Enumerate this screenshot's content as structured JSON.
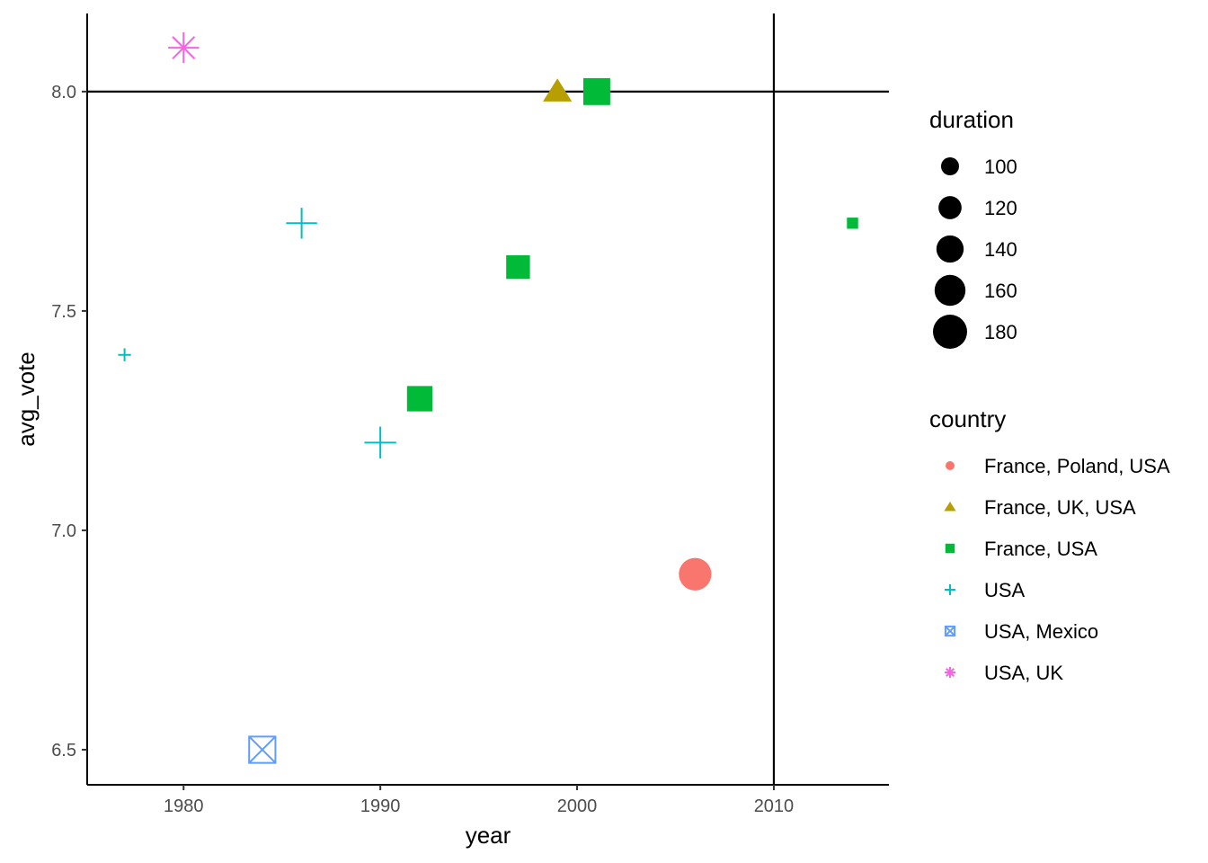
{
  "chart_data": {
    "type": "scatter",
    "xlabel": "year",
    "ylabel": "avg_vote",
    "xlim": [
      1975.1,
      2015.85
    ],
    "ylim": [
      6.42,
      8.178
    ],
    "x_ticks": [
      1980,
      1990,
      2000,
      2010
    ],
    "x_tick_labels": [
      "1980",
      "1990",
      "2000",
      "2010"
    ],
    "y_ticks": [
      6.5,
      7.0,
      7.5,
      8.0
    ],
    "y_tick_labels": [
      "6.5",
      "7.0",
      "7.5",
      "8.0"
    ],
    "grid": false,
    "reference_lines": {
      "hline": 8.0,
      "vline": 2010
    },
    "size_legend": {
      "title": "duration",
      "values": [
        100,
        120,
        140,
        160,
        180
      ],
      "labels": [
        "100",
        "120",
        "140",
        "160",
        "180"
      ]
    },
    "color_legend": {
      "title": "country",
      "entries": [
        {
          "label": "France, Poland, USA",
          "color": "#F8766D",
          "shape": "circle"
        },
        {
          "label": "France, UK, USA",
          "color": "#B79F00",
          "shape": "triangle"
        },
        {
          "label": "France, USA",
          "color": "#00BA38",
          "shape": "square"
        },
        {
          "label": "USA",
          "color": "#00BFC4",
          "shape": "plus"
        },
        {
          "label": "USA, Mexico",
          "color": "#619CFF",
          "shape": "boxx"
        },
        {
          "label": "USA, UK",
          "color": "#F564E3",
          "shape": "asterisk"
        }
      ]
    },
    "legend_position": "right",
    "points": [
      {
        "year": 1980,
        "avg_vote": 8.1,
        "duration": 160,
        "country": "USA, UK"
      },
      {
        "year": 1999,
        "avg_vote": 8.0,
        "duration": 135,
        "country": "France, UK, USA"
      },
      {
        "year": 2001,
        "avg_vote": 8.0,
        "duration": 160,
        "country": "France, USA"
      },
      {
        "year": 2014,
        "avg_vote": 7.7,
        "duration": 85,
        "country": "France, USA"
      },
      {
        "year": 1986,
        "avg_vote": 7.7,
        "duration": 160,
        "country": "USA"
      },
      {
        "year": 1997,
        "avg_vote": 7.6,
        "duration": 140,
        "country": "France, USA"
      },
      {
        "year": 1977,
        "avg_vote": 7.4,
        "duration": 85,
        "country": "USA"
      },
      {
        "year": 1992,
        "avg_vote": 7.3,
        "duration": 150,
        "country": "France, USA"
      },
      {
        "year": 1990,
        "avg_vote": 7.2,
        "duration": 165,
        "country": "USA"
      },
      {
        "year": 2006,
        "avg_vote": 6.9,
        "duration": 170,
        "country": "France, Poland, USA"
      },
      {
        "year": 1984,
        "avg_vote": 6.5,
        "duration": 160,
        "country": "USA, Mexico"
      }
    ]
  }
}
